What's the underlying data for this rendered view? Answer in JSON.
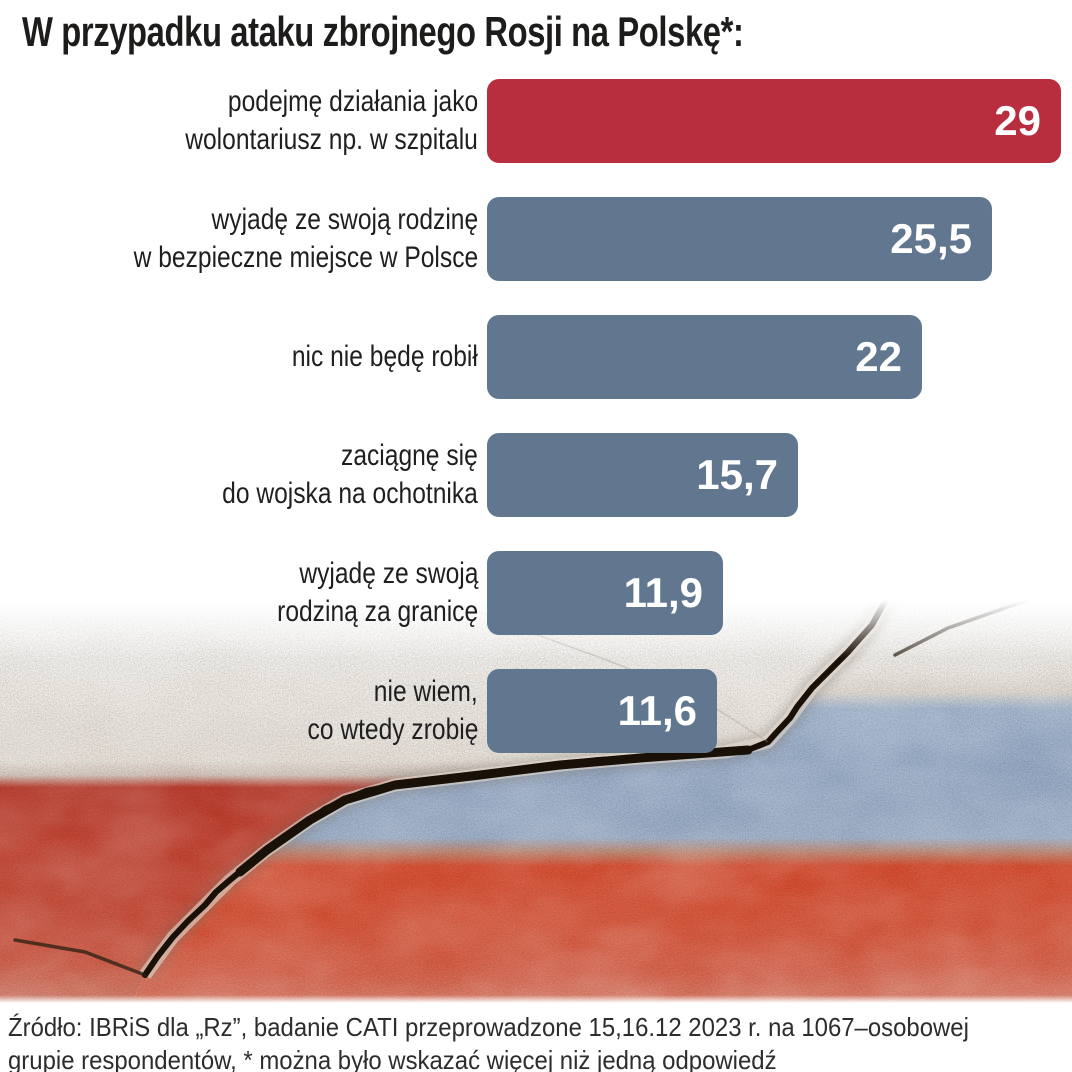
{
  "title": "W przypadku ataku zbrojnego Rosji na Polskę*:",
  "chart_data": {
    "type": "bar",
    "orientation": "horizontal",
    "title": "W przypadku ataku zbrojnego Rosji na Polskę*:",
    "unit": "percent of respondents",
    "x_max": 29,
    "gridlines": false,
    "legend": "none",
    "categories": [
      "podejmę działania jako wolontariusz np. w szpitalu",
      "wyjadę ze swoją rodzinę w bezpieczne miejsce w Polsce",
      "nic nie będę robił",
      "zaciągnę się do wojska na ochotnika",
      "wyjadę ze swoją rodziną za granicę",
      "nie wiem, co wtedy zrobię"
    ],
    "category_lines": [
      [
        "podejmę działania jako",
        "wolontariusz np. w szpitalu"
      ],
      [
        "wyjadę ze swoją rodzinę",
        "w bezpieczne miejsce w Polsce"
      ],
      [
        "nic nie będę robił"
      ],
      [
        "zaciągnę się",
        "do wojska na ochotnika"
      ],
      [
        "wyjadę ze swoją",
        "rodziną za granicę"
      ],
      [
        "nie wiem,",
        "co wtedy zrobię"
      ]
    ],
    "values": [
      29,
      25.5,
      22,
      15.7,
      11.9,
      11.6
    ],
    "value_labels": [
      "29",
      "25,5",
      "22",
      "15,7",
      "11,9",
      "11,6"
    ],
    "bar_colors": [
      "#b92e3e",
      "#60778f",
      "#60778f",
      "#60778f",
      "#60778f",
      "#60778f"
    ]
  },
  "source": {
    "lines": [
      "Źródło: IBRiS dla „Rz”, badanie CATI przeprowadzone 15,16.12 2023 r. na 1067–osobowej",
      "grupie respondentów, * można było wskazać więcej niż jedną odpowiedź"
    ]
  },
  "colors": {
    "highlight_bar": "#b92e3e",
    "default_bar": "#60778f",
    "title_text": "#1d1c1a",
    "label_text": "#1f1f1f",
    "value_text": "#ffffff",
    "footer_text": "#2d2d2d",
    "poland_flag_red": "#c84330",
    "russia_flag_blue": "#9bafcc",
    "russia_flag_red": "#dd5133",
    "crack": "#191008"
  },
  "background": {
    "name": "cracked-concrete-poland-russia-flags"
  }
}
